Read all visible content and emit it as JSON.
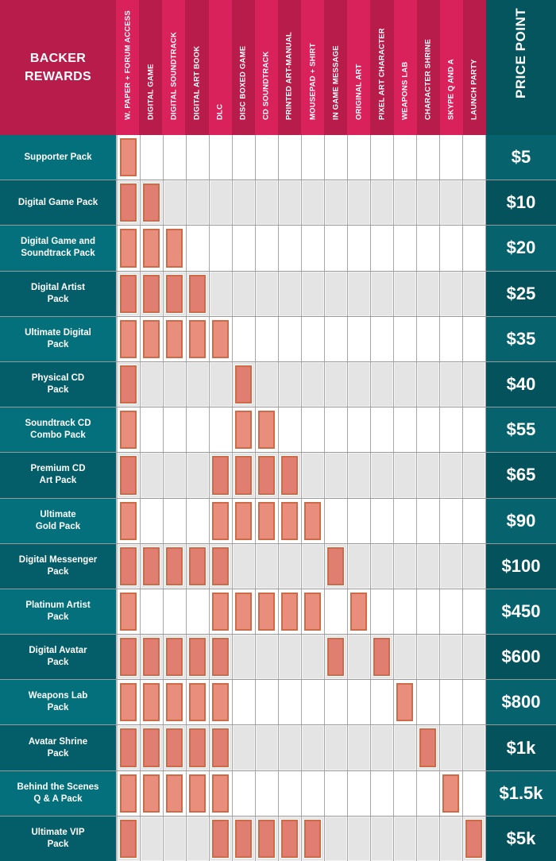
{
  "header": {
    "title": "BACKER\nREWARDS",
    "price_title": "PRICE POINT",
    "columns": [
      "W. PAPER + FORUM ACCESS",
      "DIGITAL GAME",
      "DIGITAL SOUNDTRACK",
      "DIGITAL ART BOOK",
      "DLC",
      "DISC BOXED GAME",
      "CD SOUNDTRACK",
      "PRINTED ART-MANUAL",
      "MOUSEPAD + SHIRT",
      "IN GAME MESSAGE",
      "ORIGINAL ART",
      "PIXEL ART CHARACTER",
      "WEAPONS LAB",
      "CHARACTER SHRINE",
      "SKYPE Q AND A",
      "LAUNCH PARTY"
    ]
  },
  "rows": [
    {
      "label": "Supporter Pack",
      "price": "$5",
      "items": [
        1,
        0,
        0,
        0,
        0,
        0,
        0,
        0,
        0,
        0,
        0,
        0,
        0,
        0,
        0,
        0
      ]
    },
    {
      "label": "Digital Game Pack",
      "price": "$10",
      "items": [
        1,
        1,
        0,
        0,
        0,
        0,
        0,
        0,
        0,
        0,
        0,
        0,
        0,
        0,
        0,
        0
      ]
    },
    {
      "label": "Digital Game and\nSoundtrack Pack",
      "price": "$20",
      "items": [
        1,
        1,
        1,
        0,
        0,
        0,
        0,
        0,
        0,
        0,
        0,
        0,
        0,
        0,
        0,
        0
      ]
    },
    {
      "label": "Digital Artist\nPack",
      "price": "$25",
      "items": [
        1,
        1,
        1,
        1,
        0,
        0,
        0,
        0,
        0,
        0,
        0,
        0,
        0,
        0,
        0,
        0
      ]
    },
    {
      "label": "Ultimate Digital\nPack",
      "price": "$35",
      "items": [
        1,
        1,
        1,
        1,
        1,
        0,
        0,
        0,
        0,
        0,
        0,
        0,
        0,
        0,
        0,
        0
      ]
    },
    {
      "label": "Physical CD\nPack",
      "price": "$40",
      "items": [
        1,
        0,
        0,
        0,
        0,
        1,
        0,
        0,
        0,
        0,
        0,
        0,
        0,
        0,
        0,
        0
      ]
    },
    {
      "label": "Soundtrack CD\nCombo Pack",
      "price": "$55",
      "items": [
        1,
        0,
        0,
        0,
        0,
        1,
        1,
        0,
        0,
        0,
        0,
        0,
        0,
        0,
        0,
        0
      ]
    },
    {
      "label": "Premium CD\nArt Pack",
      "price": "$65",
      "items": [
        1,
        0,
        0,
        0,
        1,
        1,
        1,
        1,
        0,
        0,
        0,
        0,
        0,
        0,
        0,
        0
      ]
    },
    {
      "label": "Ultimate\nGold Pack",
      "price": "$90",
      "items": [
        1,
        0,
        0,
        0,
        1,
        1,
        1,
        1,
        1,
        0,
        0,
        0,
        0,
        0,
        0,
        0
      ]
    },
    {
      "label": "Digital Messenger\nPack",
      "price": "$100",
      "items": [
        1,
        1,
        1,
        1,
        1,
        0,
        0,
        0,
        0,
        1,
        0,
        0,
        0,
        0,
        0,
        0
      ]
    },
    {
      "label": "Platinum Artist\nPack",
      "price": "$450",
      "items": [
        1,
        0,
        0,
        0,
        1,
        1,
        1,
        1,
        1,
        0,
        1,
        0,
        0,
        0,
        0,
        0
      ]
    },
    {
      "label": "Digital Avatar\nPack",
      "price": "$600",
      "items": [
        1,
        1,
        1,
        1,
        1,
        0,
        0,
        0,
        0,
        1,
        0,
        1,
        0,
        0,
        0,
        0
      ]
    },
    {
      "label": "Weapons Lab\nPack",
      "price": "$800",
      "items": [
        1,
        1,
        1,
        1,
        1,
        0,
        0,
        0,
        0,
        0,
        0,
        0,
        1,
        0,
        0,
        0
      ]
    },
    {
      "label": "Avatar Shrine\nPack",
      "price": "$1k",
      "items": [
        1,
        1,
        1,
        1,
        1,
        0,
        0,
        0,
        0,
        0,
        0,
        0,
        0,
        1,
        0,
        0
      ]
    },
    {
      "label": "Behind the Scenes\nQ & A Pack",
      "price": "$1.5k",
      "items": [
        1,
        1,
        1,
        1,
        1,
        0,
        0,
        0,
        0,
        0,
        0,
        0,
        0,
        0,
        1,
        0
      ]
    },
    {
      "label": "Ultimate VIP\nPack",
      "price": "$5k",
      "items": [
        1,
        0,
        0,
        0,
        1,
        1,
        1,
        1,
        1,
        0,
        0,
        0,
        0,
        0,
        0,
        1
      ]
    }
  ],
  "colors": {
    "header_red": "#b81c4a",
    "header_pink": "#d9225b",
    "teal_light": "#04707c",
    "teal_dark": "#045e69",
    "bar_fill": "#e98d7c",
    "bar_border": "#cd6a48",
    "row_grey": "#e4e4e4"
  },
  "chart_data": {
    "type": "table",
    "title": "Backer Rewards",
    "row_header": "BACKER REWARDS",
    "last_column": "PRICE POINT",
    "columns": [
      "W. PAPER + FORUM ACCESS",
      "DIGITAL GAME",
      "DIGITAL SOUNDTRACK",
      "DIGITAL ART BOOK",
      "DLC",
      "DISC BOXED GAME",
      "CD SOUNDTRACK",
      "PRINTED ART-MANUAL",
      "MOUSEPAD + SHIRT",
      "IN GAME MESSAGE",
      "ORIGINAL ART",
      "PIXEL ART CHARACTER",
      "WEAPONS LAB",
      "CHARACTER SHRINE",
      "SKYPE Q AND A",
      "LAUNCH PARTY"
    ],
    "rows": [
      {
        "tier": "Supporter Pack",
        "price": "$5",
        "included": [
          "W. PAPER + FORUM ACCESS"
        ]
      },
      {
        "tier": "Digital Game Pack",
        "price": "$10",
        "included": [
          "W. PAPER + FORUM ACCESS",
          "DIGITAL GAME"
        ]
      },
      {
        "tier": "Digital Game and Soundtrack Pack",
        "price": "$20",
        "included": [
          "W. PAPER + FORUM ACCESS",
          "DIGITAL GAME",
          "DIGITAL SOUNDTRACK"
        ]
      },
      {
        "tier": "Digital Artist Pack",
        "price": "$25",
        "included": [
          "W. PAPER + FORUM ACCESS",
          "DIGITAL GAME",
          "DIGITAL SOUNDTRACK",
          "DIGITAL ART BOOK"
        ]
      },
      {
        "tier": "Ultimate Digital Pack",
        "price": "$35",
        "included": [
          "W. PAPER + FORUM ACCESS",
          "DIGITAL GAME",
          "DIGITAL SOUNDTRACK",
          "DIGITAL ART BOOK",
          "DLC"
        ]
      },
      {
        "tier": "Physical CD Pack",
        "price": "$40",
        "included": [
          "W. PAPER + FORUM ACCESS",
          "DISC BOXED GAME"
        ]
      },
      {
        "tier": "Soundtrack CD Combo Pack",
        "price": "$55",
        "included": [
          "W. PAPER + FORUM ACCESS",
          "DISC BOXED GAME",
          "CD SOUNDTRACK"
        ]
      },
      {
        "tier": "Premium CD Art Pack",
        "price": "$65",
        "included": [
          "W. PAPER + FORUM ACCESS",
          "DLC",
          "DISC BOXED GAME",
          "CD SOUNDTRACK",
          "PRINTED ART-MANUAL"
        ]
      },
      {
        "tier": "Ultimate Gold Pack",
        "price": "$90",
        "included": [
          "W. PAPER + FORUM ACCESS",
          "DLC",
          "DISC BOXED GAME",
          "CD SOUNDTRACK",
          "PRINTED ART-MANUAL",
          "MOUSEPAD + SHIRT"
        ]
      },
      {
        "tier": "Digital Messenger Pack",
        "price": "$100",
        "included": [
          "W. PAPER + FORUM ACCESS",
          "DIGITAL GAME",
          "DIGITAL SOUNDTRACK",
          "DIGITAL ART BOOK",
          "DLC",
          "IN GAME MESSAGE"
        ]
      },
      {
        "tier": "Platinum Artist Pack",
        "price": "$450",
        "included": [
          "W. PAPER + FORUM ACCESS",
          "DLC",
          "DISC BOXED GAME",
          "CD SOUNDTRACK",
          "PRINTED ART-MANUAL",
          "MOUSEPAD + SHIRT",
          "ORIGINAL ART"
        ]
      },
      {
        "tier": "Digital Avatar Pack",
        "price": "$600",
        "included": [
          "W. PAPER + FORUM ACCESS",
          "DIGITAL GAME",
          "DIGITAL SOUNDTRACK",
          "DIGITAL ART BOOK",
          "DLC",
          "IN GAME MESSAGE",
          "PIXEL ART CHARACTER"
        ]
      },
      {
        "tier": "Weapons Lab Pack",
        "price": "$800",
        "included": [
          "W. PAPER + FORUM ACCESS",
          "DIGITAL GAME",
          "DIGITAL SOUNDTRACK",
          "DIGITAL ART BOOK",
          "DLC",
          "WEAPONS LAB"
        ]
      },
      {
        "tier": "Avatar Shrine Pack",
        "price": "$1k",
        "included": [
          "W. PAPER + FORUM ACCESS",
          "DIGITAL GAME",
          "DIGITAL SOUNDTRACK",
          "DIGITAL ART BOOK",
          "DLC",
          "CHARACTER SHRINE"
        ]
      },
      {
        "tier": "Behind the Scenes Q & A Pack",
        "price": "$1.5k",
        "included": [
          "W. PAPER + FORUM ACCESS",
          "DIGITAL GAME",
          "DIGITAL SOUNDTRACK",
          "DIGITAL ART BOOK",
          "DLC",
          "SKYPE Q AND A"
        ]
      },
      {
        "tier": "Ultimate VIP Pack",
        "price": "$5k",
        "included": [
          "W. PAPER + FORUM ACCESS",
          "DLC",
          "DISC BOXED GAME",
          "CD SOUNDTRACK",
          "PRINTED ART-MANUAL",
          "MOUSEPAD + SHIRT",
          "LAUNCH PARTY"
        ]
      }
    ],
    "grid": true,
    "legend": null
  }
}
